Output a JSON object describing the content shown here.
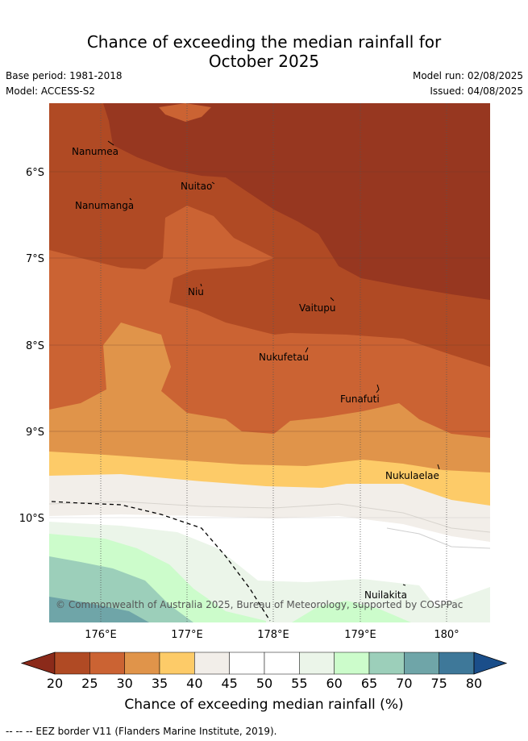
{
  "title_line1": "Chance of exceeding the median rainfall for",
  "title_line2": "October 2025",
  "base_period": "Base period: 1981-2018",
  "model": "Model: ACCESS-S2",
  "model_run": "Model run: 02/08/2025",
  "issued": "Issued: 04/08/2025",
  "copyright": "© Commonwealth of Australia 2025, Bureau of Meteorology, supported by COSPPac",
  "lat_labels": [
    "6°S",
    "7°S",
    "8°S",
    "9°S",
    "10°S"
  ],
  "lon_labels": [
    "176°E",
    "177°E",
    "178°E",
    "179°E",
    "180°"
  ],
  "places": [
    "Nanumea",
    "Nuitao",
    "Nanumanga",
    "Niu",
    "Vaitupu",
    "Nukufetau",
    "Funafuti",
    "Nukulaelae",
    "Nuilakita"
  ],
  "colorbar": {
    "ticks": [
      "20",
      "25",
      "30",
      "35",
      "40",
      "45",
      "50",
      "55",
      "60",
      "65",
      "70",
      "75",
      "80"
    ],
    "colors": [
      "#8b2a1a",
      "#b04a24",
      "#cb6333",
      "#e0944a",
      "#fdcb68",
      "#f2eee9",
      "#ffffff",
      "#ffffff",
      "#ebf5e9",
      "#ccfccb",
      "#9ccfba",
      "#6fa5a8",
      "#3e7899",
      "#1a4e8a"
    ],
    "label": "Chance of exceeding median rainfall (%)"
  },
  "footer": "--  --  -- EEZ border V11 (Flanders Marine Institute, 2019)."
}
